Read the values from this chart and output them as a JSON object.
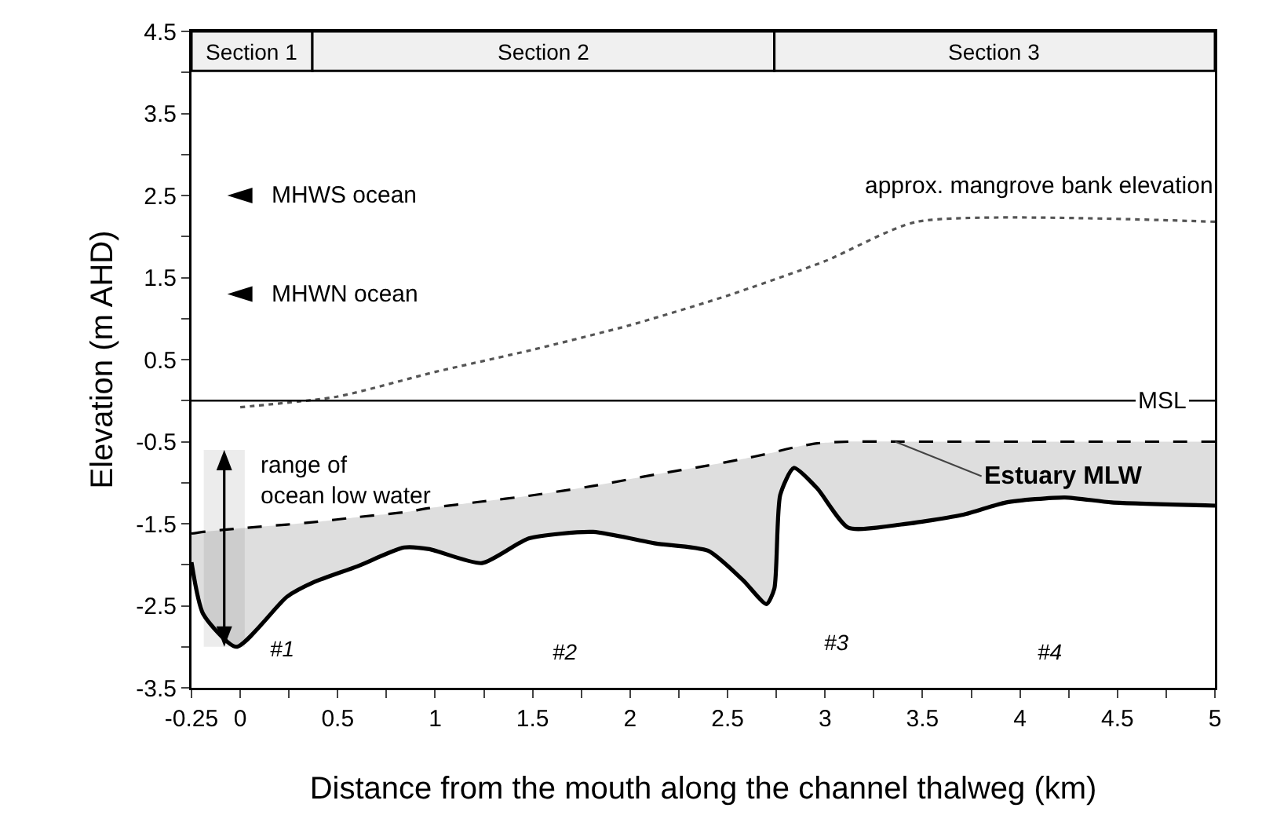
{
  "chart_data": {
    "type": "line",
    "xlabel": "Distance from the mouth along the channel thalweg (km)",
    "ylabel": "Elevation (m AHD)",
    "xlim": [
      -0.25,
      5
    ],
    "ylim": [
      -3.5,
      4.5
    ],
    "xticks": [
      -0.25,
      0,
      {
        "value": 0.25,
        "label": null
      },
      0.5,
      {
        "value": 0.75,
        "label": null
      },
      1,
      {
        "value": 1.25,
        "label": null
      },
      1.5,
      {
        "value": 1.75,
        "label": null
      },
      2,
      {
        "value": 2.25,
        "label": null
      },
      2.5,
      {
        "value": 2.75,
        "label": null
      },
      3,
      {
        "value": 3.25,
        "label": null
      },
      3.5,
      {
        "value": 3.75,
        "label": null
      },
      4,
      {
        "value": 4.25,
        "label": null
      },
      4.5,
      {
        "value": 4.75,
        "label": null
      },
      5
    ],
    "yticks": [
      -3.5,
      {
        "value": -3,
        "label": null
      },
      -2.5,
      {
        "value": -2,
        "label": null
      },
      -1.5,
      {
        "value": -1,
        "label": null
      },
      -0.5,
      {
        "value": 0,
        "label": null
      },
      0.5,
      {
        "value": 1,
        "label": null
      },
      1.5,
      {
        "value": 2,
        "label": null
      },
      2.5,
      {
        "value": 3,
        "label": null
      },
      3.5,
      {
        "value": 4,
        "label": null
      },
      4.5
    ],
    "grid": false,
    "marker": "none",
    "series": [
      {
        "color": "#000000",
        "line_style": "dashed",
        "x": [
          -0.25,
          -0.19,
          -0.02,
          0.24,
          0.38,
          0.6,
          0.84,
          0.97,
          1.24,
          1.48,
          1.81,
          2.13,
          2.4,
          2.58,
          2.7,
          2.74,
          2.77,
          2.84,
          2.96,
          3.12,
          3.39,
          3.71,
          3.93,
          4.23,
          4.47,
          5.0
        ],
        "values": [
          -1.62,
          -1.6,
          -1.56,
          -1.51,
          -1.48,
          -1.42,
          -1.36,
          -1.31,
          -1.23,
          -1.16,
          -1.04,
          -0.9,
          -0.79,
          -0.71,
          -0.65,
          -0.63,
          -0.61,
          -0.57,
          -0.52,
          -0.5,
          -0.5,
          -0.5,
          -0.5,
          -0.5,
          -0.5,
          -0.5
        ],
        "lower": [
          -1.97,
          -2.6,
          -3.0,
          -2.39,
          -2.21,
          -2.02,
          -1.79,
          -1.81,
          -1.98,
          -1.68,
          -1.6,
          -1.74,
          -1.83,
          -2.19,
          -2.48,
          -2.29,
          -1.15,
          -0.82,
          -1.07,
          -1.55,
          -1.51,
          -1.39,
          -1.24,
          -1.18,
          -1.24,
          -1.28
        ],
        "upper": [
          -1.62,
          -1.6,
          -1.56,
          -1.51,
          -1.48,
          -1.42,
          -1.36,
          -1.31,
          -1.23,
          -1.16,
          -1.04,
          -0.9,
          -0.79,
          -0.71,
          -0.65,
          -0.63,
          -0.61,
          -0.57,
          -0.52,
          -0.5,
          -0.5,
          -0.5,
          -0.5,
          -0.5,
          -0.5,
          -0.5
        ]
      },
      {
        "color": "#000000",
        "line_style": "solid",
        "x": [
          -0.25,
          -0.19,
          -0.02,
          0.24,
          0.38,
          0.6,
          0.84,
          0.97,
          1.24,
          1.48,
          1.81,
          2.13,
          2.4,
          2.58,
          2.7,
          2.74,
          2.77,
          2.84,
          2.96,
          3.12,
          3.39,
          3.71,
          3.93,
          4.23,
          4.47,
          5.0
        ],
        "values": [
          -1.97,
          -2.6,
          -3.0,
          -2.39,
          -2.21,
          -2.02,
          -1.79,
          -1.81,
          -1.98,
          -1.68,
          -1.6,
          -1.74,
          -1.83,
          -2.19,
          -2.48,
          -2.29,
          -1.15,
          -0.82,
          -1.07,
          -1.55,
          -1.51,
          -1.39,
          -1.24,
          -1.18,
          -1.24,
          -1.28
        ]
      },
      {
        "color": "#555555",
        "line_style": "dotted",
        "x": [
          0,
          0.5,
          1.0,
          1.5,
          2.0,
          2.5,
          3.0,
          3.47,
          5.0
        ],
        "values": [
          -0.08,
          0.05,
          0.35,
          0.62,
          0.92,
          1.28,
          1.7,
          2.18,
          2.18
        ]
      }
    ],
    "ref_lines": [
      {
        "axis": "y",
        "value": 0,
        "label": "MSL"
      }
    ],
    "bands": [
      {
        "axis": "x",
        "from": -0.25,
        "to": 0.37,
        "label": "Section 1",
        "color": "#f0f0f0"
      },
      {
        "axis": "x",
        "from": 0.37,
        "to": 2.74,
        "label": "Section 2",
        "color": "#f0f0f0"
      },
      {
        "axis": "x",
        "from": 2.74,
        "to": 5,
        "label": "Section 3",
        "color": "#f0f0f0"
      },
      {
        "axis": "y",
        "from": -3.0,
        "to": -0.6,
        "label": "range of ocean low water",
        "color": "#ececec"
      }
    ],
    "annotations": [
      "MHWS ocean",
      "MHWN ocean",
      {
        "text": "approx. mangrove bank elevation",
        "x": 4.1,
        "y": 2.18
      },
      {
        "text": "Estuary MLW",
        "x": 3.36,
        "y": -0.5
      },
      "#1",
      "#2",
      "#3",
      "#4"
    ]
  }
}
